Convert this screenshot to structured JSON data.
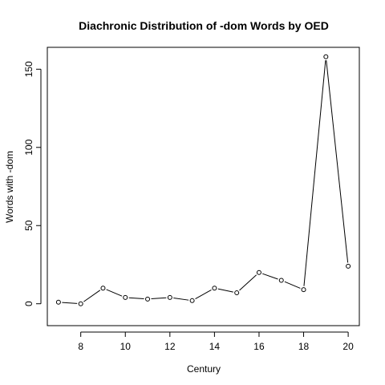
{
  "chart_data": {
    "type": "line",
    "title": "Diachronic Distribution of -dom Words by OED",
    "xlabel": "Century",
    "ylabel": "Words with -dom",
    "x": [
      7,
      8,
      9,
      10,
      11,
      12,
      13,
      14,
      15,
      16,
      17,
      18,
      19,
      20
    ],
    "values": [
      1,
      0,
      10,
      4,
      3,
      4,
      2,
      10,
      7,
      20,
      15,
      9,
      158,
      24
    ],
    "xlim": [
      6.5,
      20.5
    ],
    "ylim": [
      -14,
      164
    ],
    "xticks": [
      "8",
      "10",
      "12",
      "14",
      "16",
      "18",
      "20"
    ],
    "yticks": [
      "0",
      "50",
      "100",
      "150"
    ],
    "markers": "open-circle",
    "grid": false,
    "legend": "none"
  }
}
